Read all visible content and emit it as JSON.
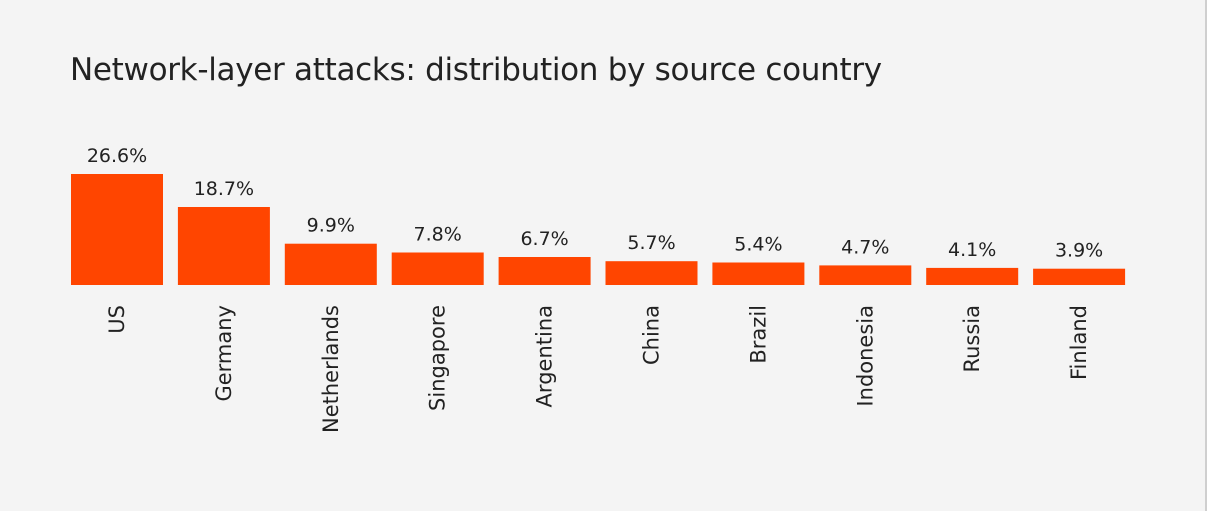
{
  "chart_data": {
    "type": "bar",
    "title": "Network-layer attacks: distribution by source country",
    "xlabel": "",
    "ylabel": "",
    "categories": [
      "US",
      "Germany",
      "Netherlands",
      "Singapore",
      "Argentina",
      "China",
      "Brazil",
      "Indonesia",
      "Russia",
      "Finland"
    ],
    "values": [
      26.6,
      18.7,
      9.9,
      7.8,
      6.7,
      5.7,
      5.4,
      4.7,
      4.1,
      3.9
    ],
    "value_labels": [
      "26.6%",
      "18.7%",
      "9.9%",
      "7.8%",
      "6.7%",
      "5.7%",
      "5.4%",
      "4.7%",
      "4.1%",
      "3.9%"
    ],
    "value_unit": "%",
    "ylim": [
      0,
      26.6
    ],
    "grid": false,
    "legend": "none",
    "bar_color": "#ff4500",
    "background_color": "#f4f4f4"
  }
}
